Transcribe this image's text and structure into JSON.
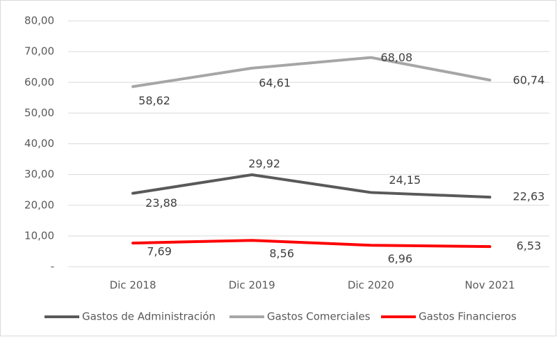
{
  "chart_data": {
    "type": "line",
    "categories": [
      "Dic 2018",
      "Dic 2019",
      "Dic 2020",
      "Nov 2021"
    ],
    "series": [
      {
        "name": "Gastos de Administración",
        "color": "#595959",
        "values": [
          23.88,
          29.92,
          24.15,
          22.63
        ],
        "value_labels": [
          "23,88",
          "29,92",
          "24,15",
          "22,63"
        ]
      },
      {
        "name": "Gastos Comerciales",
        "color": "#a6a6a6",
        "values": [
          58.62,
          64.61,
          68.08,
          60.74
        ],
        "value_labels": [
          "58,62",
          "64,61",
          "68,08",
          "60,74"
        ]
      },
      {
        "name": "Gastos Financieros",
        "color": "#ff0000",
        "values": [
          7.69,
          8.56,
          6.96,
          6.53
        ],
        "value_labels": [
          "7,69",
          "8,56",
          "6,96",
          "6,53"
        ]
      }
    ],
    "ylim": [
      0,
      80
    ],
    "yticks": [
      {
        "value": 0,
        "label": "-"
      },
      {
        "value": 10,
        "label": "10,00"
      },
      {
        "value": 20,
        "label": "20,00"
      },
      {
        "value": 30,
        "label": "30,00"
      },
      {
        "value": 40,
        "label": "40,00"
      },
      {
        "value": 50,
        "label": "50,00"
      },
      {
        "value": 60,
        "label": "60,00"
      },
      {
        "value": 70,
        "label": "70,00"
      },
      {
        "value": 80,
        "label": "80,00"
      }
    ],
    "grid": true,
    "legend": "bottom"
  }
}
